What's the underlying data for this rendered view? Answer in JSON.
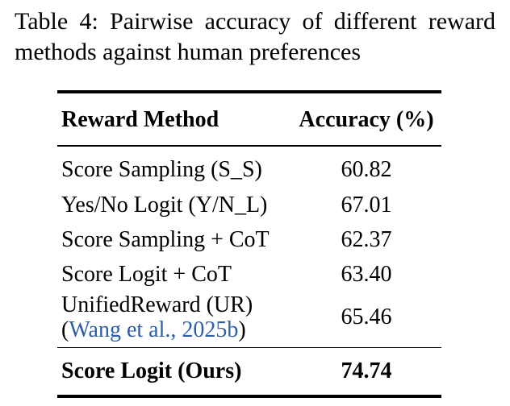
{
  "caption": {
    "label": "Table 4:",
    "text": "Pairwise accuracy of different reward methods against human preferences"
  },
  "table": {
    "headers": {
      "method": "Reward Method",
      "accuracy": "Accuracy (%)"
    },
    "rows": [
      {
        "method": "Score Sampling (S_S)",
        "accuracy": "60.82"
      },
      {
        "method": "Yes/No Logit (Y/N_L)",
        "accuracy": "67.01"
      },
      {
        "method": "Score Sampling + CoT",
        "accuracy": "62.37"
      },
      {
        "method": "Score Logit + CoT",
        "accuracy": "63.40"
      },
      {
        "method": "UnifiedReward (UR)",
        "citation_open": "(",
        "citation": "Wang et al., 2025b",
        "citation_close": ")",
        "accuracy": "65.46"
      }
    ],
    "highlight_row": {
      "method": "Score Logit (Ours)",
      "accuracy": "74.74"
    }
  },
  "colors": {
    "text": "#000000",
    "citation_link": "#2b5ea8"
  }
}
